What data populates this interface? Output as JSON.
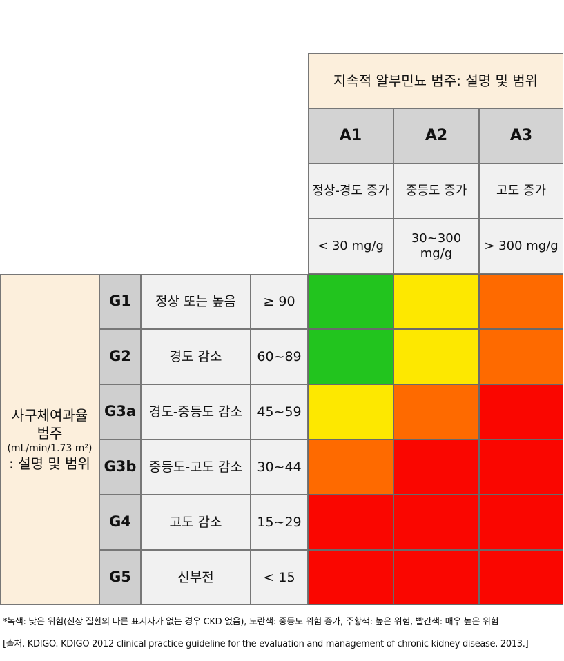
{
  "header": {
    "title": "지속적 알부민뇨 범주: 설명 및 범위",
    "columns": [
      {
        "code": "A1",
        "desc": "정상-경도 증가",
        "range": "< 30 mg/g"
      },
      {
        "code": "A2",
        "desc": "중등도 증가",
        "range": "30~300 mg/g"
      },
      {
        "code": "A3",
        "desc": "고도 증가",
        "range": "> 300 mg/g"
      }
    ]
  },
  "left": {
    "title_line1": "사구체여과율",
    "title_line2": "범주",
    "unit": "(mL/min/1.73 m²)",
    "title_line3": ": 설명 및 범위"
  },
  "rows": [
    {
      "code": "G1",
      "desc": "정상 또는 높음",
      "range": "≥ 90",
      "risk": [
        "green",
        "yellow",
        "orange"
      ]
    },
    {
      "code": "G2",
      "desc": "경도 감소",
      "range": "60~89",
      "risk": [
        "green",
        "yellow",
        "orange"
      ]
    },
    {
      "code": "G3a",
      "desc": "경도-중등도 감소",
      "range": "45~59",
      "risk": [
        "yellow",
        "orange",
        "red"
      ]
    },
    {
      "code": "G3b",
      "desc": "중등도-고도 감소",
      "range": "30~44",
      "risk": [
        "orange",
        "red",
        "red"
      ]
    },
    {
      "code": "G4",
      "desc": "고도 감소",
      "range": "15~29",
      "risk": [
        "red",
        "red",
        "red"
      ]
    },
    {
      "code": "G5",
      "desc": "신부전",
      "range": "< 15",
      "risk": [
        "red",
        "red",
        "red"
      ]
    }
  ],
  "colors": {
    "green": "#22c41e",
    "yellow": "#fde800",
    "orange": "#fe6a00",
    "red": "#fa0600"
  },
  "footnotes": {
    "legend": "*녹색: 낮은 위험(신장 질환의 다른 표지자가 없는 경우 CKD 없음), 노란색: 중등도 위험 증가, 주황색: 높은 위험, 빨간색: 매우 높은 위험",
    "source": "[출처. KDIGO. KDIGO 2012 clinical practice guideline for the evaluation and management of chronic kidney disease. 2013.]"
  }
}
